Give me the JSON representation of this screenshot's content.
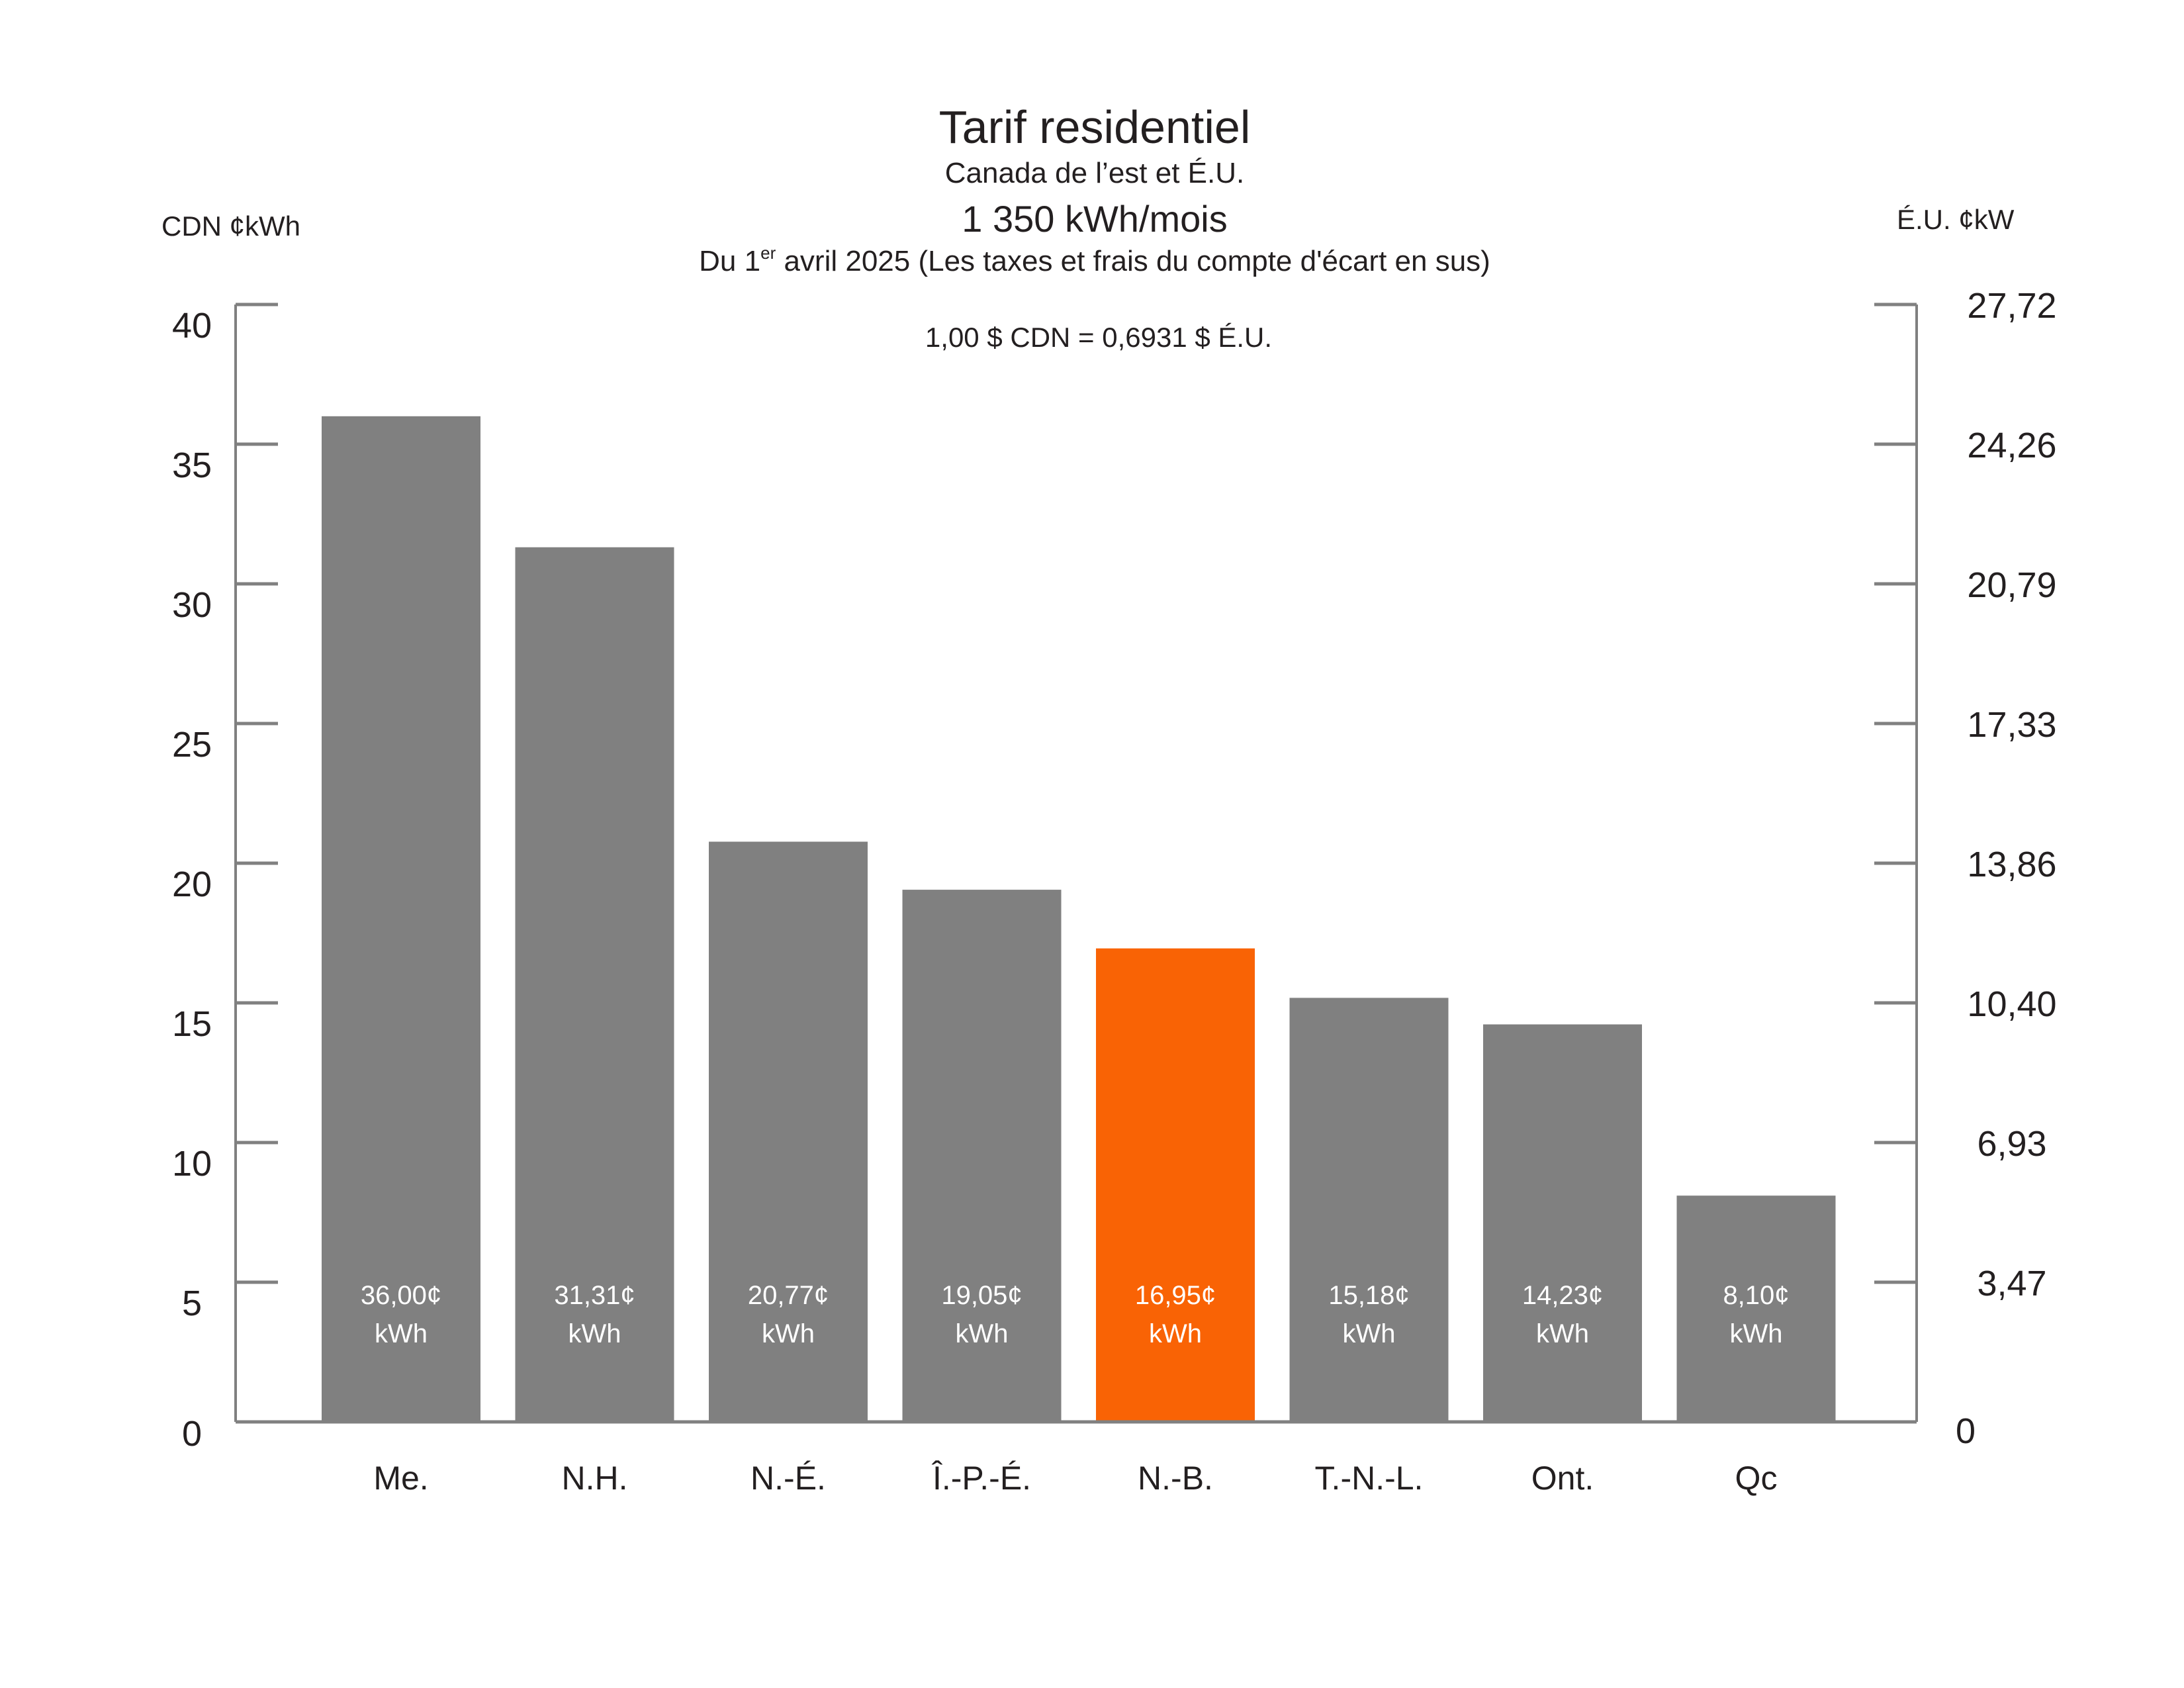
{
  "chart_data": {
    "type": "bar",
    "title": "Tarif residentiel",
    "subtitle": "Canada de l’est et É.U.",
    "usage": "1 350 kWh/mois",
    "date_note_prefix": "Du 1",
    "date_note_sup": "er",
    "date_note_suffix": " avril 2025 (Les taxes et frais du compte d'écart en sus)",
    "exchange_rate": "1,00 $ CDN = 0,6931 $ É.U.",
    "ylabel_left": "CDN ¢kWh",
    "ylabel_right": "É.U. ¢kW",
    "ylim": [
      0,
      40
    ],
    "left_ticks": [
      "0",
      "5",
      "10",
      "15",
      "20",
      "25",
      "30",
      "35",
      "40"
    ],
    "right_ticks": [
      "0",
      "3,47",
      "6,93",
      "10,40",
      "13,86",
      "17,33",
      "20,79",
      "24,26",
      "27,72"
    ],
    "grid": false,
    "categories": [
      "Me.",
      "N.H.",
      "N.-É.",
      "Î.-P.-É.",
      "N.-B.",
      "T.-N.-L.",
      "Ont.",
      "Qc"
    ],
    "values": [
      36.0,
      31.31,
      20.77,
      19.05,
      16.95,
      15.18,
      14.23,
      8.1
    ],
    "data_labels": [
      "36,00¢",
      "31,31¢",
      "20,77¢",
      "19,05¢",
      "16,95¢",
      "15,18¢",
      "14,23¢",
      "8,10¢"
    ],
    "data_label_unit": "kWh",
    "highlight_index": 4,
    "colors": {
      "bar": "#808080",
      "highlight": "#f96305",
      "axis": "#808080",
      "text": "#231f20",
      "data_label": "#ffffff"
    }
  }
}
